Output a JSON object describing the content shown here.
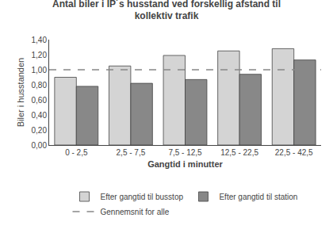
{
  "chart_data": {
    "type": "bar",
    "title": "Antal biler i IP´s husstand ved forskellig afstand til\nkollektiv trafik",
    "xlabel": "Gangtid i minutter",
    "ylabel": "Biler i husstanden",
    "categories": [
      "0 - 2,5",
      "2,5 - 7,5",
      "7,5 - 12,5",
      "12,5 - 22,5",
      "22,5 - 42,5"
    ],
    "series": [
      {
        "name": "Efter gangtid til busstop",
        "color": "#d4d4d4",
        "values": [
          0.9,
          1.05,
          1.19,
          1.25,
          1.28
        ]
      },
      {
        "name": "Efter gangtid til station",
        "color": "#888888",
        "values": [
          0.78,
          0.82,
          0.87,
          0.94,
          1.13
        ]
      }
    ],
    "reference_line": {
      "name": "Gennemsnit for alle",
      "value": 1.0,
      "color": "#888888",
      "line_style": "dashed"
    },
    "ylim": [
      0,
      1.4
    ],
    "yticks": [
      {
        "value": 0.0,
        "label": "0,00"
      },
      {
        "value": 0.2,
        "label": "0,20"
      },
      {
        "value": 0.4,
        "label": "0,40"
      },
      {
        "value": 0.6,
        "label": "0,60"
      },
      {
        "value": 0.8,
        "label": "0,80"
      },
      {
        "value": 1.0,
        "label": "1,00"
      },
      {
        "value": 1.2,
        "label": "1,20"
      },
      {
        "value": 1.4,
        "label": "1,40"
      }
    ],
    "grid": false,
    "legend": "bottom"
  }
}
